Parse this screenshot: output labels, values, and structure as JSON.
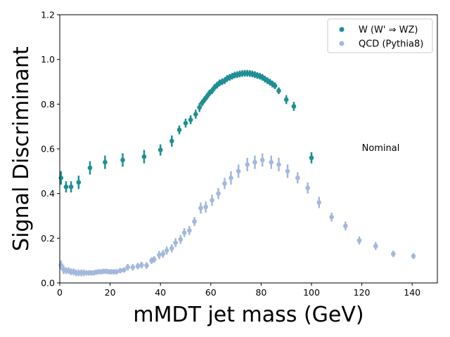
{
  "chart_data": {
    "type": "scatter",
    "title": "",
    "xlabel": "mMDT jet mass (GeV)",
    "ylabel": "Signal Discriminant",
    "xlim": [
      0,
      150
    ],
    "ylim": [
      0,
      1.2
    ],
    "xticks": [
      "0",
      "20",
      "40",
      "60",
      "80",
      "100",
      "120",
      "140"
    ],
    "yticks": [
      "0.0",
      "0.2",
      "0.4",
      "0.6",
      "0.8",
      "1.0",
      "1.2"
    ],
    "legend_position": "top-right",
    "annotation": {
      "text": "Nominal",
      "x": 120,
      "y": 0.59
    },
    "series": [
      {
        "name": "W (W' ⇒ WZ)",
        "color": "#1f8f94",
        "points": [
          {
            "x": 0.5,
            "y": 0.47,
            "err": 0.03
          },
          {
            "x": 2.5,
            "y": 0.43,
            "err": 0.025
          },
          {
            "x": 4.5,
            "y": 0.43,
            "err": 0.025
          },
          {
            "x": 7.5,
            "y": 0.45,
            "err": 0.03
          },
          {
            "x": 12,
            "y": 0.515,
            "err": 0.03
          },
          {
            "x": 18,
            "y": 0.54,
            "err": 0.03
          },
          {
            "x": 25,
            "y": 0.55,
            "err": 0.03
          },
          {
            "x": 33.5,
            "y": 0.565,
            "err": 0.03
          },
          {
            "x": 40,
            "y": 0.595,
            "err": 0.025
          },
          {
            "x": 44.5,
            "y": 0.635,
            "err": 0.025
          },
          {
            "x": 47.5,
            "y": 0.685,
            "err": 0.02
          },
          {
            "x": 50,
            "y": 0.715,
            "err": 0.02
          },
          {
            "x": 52,
            "y": 0.73,
            "err": 0.02
          },
          {
            "x": 54,
            "y": 0.755,
            "err": 0.02
          },
          {
            "x": 55.5,
            "y": 0.785,
            "err": 0.02
          },
          {
            "x": 56.5,
            "y": 0.805,
            "err": 0.015
          },
          {
            "x": 57.5,
            "y": 0.82,
            "err": 0.015
          },
          {
            "x": 58.5,
            "y": 0.835,
            "err": 0.015
          },
          {
            "x": 59.5,
            "y": 0.85,
            "err": 0.015
          },
          {
            "x": 60.5,
            "y": 0.86,
            "err": 0.015
          },
          {
            "x": 61.5,
            "y": 0.875,
            "err": 0.015
          },
          {
            "x": 62.5,
            "y": 0.885,
            "err": 0.015
          },
          {
            "x": 63.5,
            "y": 0.895,
            "err": 0.015
          },
          {
            "x": 64.5,
            "y": 0.9,
            "err": 0.015
          },
          {
            "x": 65.5,
            "y": 0.905,
            "err": 0.015
          },
          {
            "x": 66.5,
            "y": 0.915,
            "err": 0.015
          },
          {
            "x": 67.5,
            "y": 0.92,
            "err": 0.015
          },
          {
            "x": 68.5,
            "y": 0.925,
            "err": 0.015
          },
          {
            "x": 69.5,
            "y": 0.93,
            "err": 0.015
          },
          {
            "x": 70.5,
            "y": 0.932,
            "err": 0.015
          },
          {
            "x": 71.5,
            "y": 0.935,
            "err": 0.015
          },
          {
            "x": 72.5,
            "y": 0.937,
            "err": 0.015
          },
          {
            "x": 73.5,
            "y": 0.938,
            "err": 0.015
          },
          {
            "x": 74.5,
            "y": 0.938,
            "err": 0.015
          },
          {
            "x": 75.5,
            "y": 0.937,
            "err": 0.015
          },
          {
            "x": 76.5,
            "y": 0.935,
            "err": 0.015
          },
          {
            "x": 77.5,
            "y": 0.932,
            "err": 0.015
          },
          {
            "x": 78.5,
            "y": 0.928,
            "err": 0.015
          },
          {
            "x": 79.5,
            "y": 0.925,
            "err": 0.015
          },
          {
            "x": 80.5,
            "y": 0.92,
            "err": 0.015
          },
          {
            "x": 81.5,
            "y": 0.912,
            "err": 0.015
          },
          {
            "x": 82.5,
            "y": 0.905,
            "err": 0.015
          },
          {
            "x": 83.5,
            "y": 0.898,
            "err": 0.015
          },
          {
            "x": 84.5,
            "y": 0.89,
            "err": 0.015
          },
          {
            "x": 85.5,
            "y": 0.882,
            "err": 0.015
          },
          {
            "x": 87,
            "y": 0.86,
            "err": 0.015
          },
          {
            "x": 90,
            "y": 0.82,
            "err": 0.02
          },
          {
            "x": 93,
            "y": 0.79,
            "err": 0.02
          },
          {
            "x": 100,
            "y": 0.56,
            "err": 0.025
          }
        ]
      },
      {
        "name": "QCD (Pythia8)",
        "color": "#a4b8dd",
        "points": [
          {
            "x": 0.5,
            "y": 0.08,
            "err": 0.02
          },
          {
            "x": 1.5,
            "y": 0.06,
            "err": 0.02
          },
          {
            "x": 2.5,
            "y": 0.055,
            "err": 0.015
          },
          {
            "x": 3.5,
            "y": 0.055,
            "err": 0.015
          },
          {
            "x": 4.5,
            "y": 0.05,
            "err": 0.015
          },
          {
            "x": 5.5,
            "y": 0.05,
            "err": 0.015
          },
          {
            "x": 6.5,
            "y": 0.045,
            "err": 0.015
          },
          {
            "x": 7.5,
            "y": 0.045,
            "err": 0.015
          },
          {
            "x": 8.5,
            "y": 0.045,
            "err": 0.015
          },
          {
            "x": 9.5,
            "y": 0.045,
            "err": 0.015
          },
          {
            "x": 10.5,
            "y": 0.045,
            "err": 0.012
          },
          {
            "x": 11.5,
            "y": 0.045,
            "err": 0.012
          },
          {
            "x": 12.5,
            "y": 0.045,
            "err": 0.012
          },
          {
            "x": 13.5,
            "y": 0.045,
            "err": 0.012
          },
          {
            "x": 14.5,
            "y": 0.048,
            "err": 0.012
          },
          {
            "x": 15.5,
            "y": 0.05,
            "err": 0.012
          },
          {
            "x": 16.5,
            "y": 0.05,
            "err": 0.012
          },
          {
            "x": 17.5,
            "y": 0.052,
            "err": 0.012
          },
          {
            "x": 18.5,
            "y": 0.052,
            "err": 0.012
          },
          {
            "x": 19.5,
            "y": 0.05,
            "err": 0.012
          },
          {
            "x": 20.5,
            "y": 0.05,
            "err": 0.012
          },
          {
            "x": 21.5,
            "y": 0.05,
            "err": 0.012
          },
          {
            "x": 22.5,
            "y": 0.05,
            "err": 0.012
          },
          {
            "x": 24,
            "y": 0.055,
            "err": 0.012
          },
          {
            "x": 25.5,
            "y": 0.058,
            "err": 0.012
          },
          {
            "x": 27,
            "y": 0.07,
            "err": 0.015
          },
          {
            "x": 29,
            "y": 0.07,
            "err": 0.015
          },
          {
            "x": 31,
            "y": 0.075,
            "err": 0.015
          },
          {
            "x": 32.5,
            "y": 0.08,
            "err": 0.015
          },
          {
            "x": 34.5,
            "y": 0.078,
            "err": 0.015
          },
          {
            "x": 36.5,
            "y": 0.1,
            "err": 0.015
          },
          {
            "x": 37.5,
            "y": 0.105,
            "err": 0.015
          },
          {
            "x": 39.5,
            "y": 0.125,
            "err": 0.018
          },
          {
            "x": 41,
            "y": 0.13,
            "err": 0.018
          },
          {
            "x": 42.5,
            "y": 0.145,
            "err": 0.018
          },
          {
            "x": 44.5,
            "y": 0.155,
            "err": 0.018
          },
          {
            "x": 46,
            "y": 0.18,
            "err": 0.02
          },
          {
            "x": 48,
            "y": 0.195,
            "err": 0.02
          },
          {
            "x": 49.5,
            "y": 0.225,
            "err": 0.02
          },
          {
            "x": 51.5,
            "y": 0.235,
            "err": 0.02
          },
          {
            "x": 53.5,
            "y": 0.275,
            "err": 0.02
          },
          {
            "x": 56,
            "y": 0.335,
            "err": 0.025
          },
          {
            "x": 58,
            "y": 0.34,
            "err": 0.025
          },
          {
            "x": 60.5,
            "y": 0.37,
            "err": 0.025
          },
          {
            "x": 63,
            "y": 0.4,
            "err": 0.025
          },
          {
            "x": 65.5,
            "y": 0.445,
            "err": 0.025
          },
          {
            "x": 68,
            "y": 0.47,
            "err": 0.03
          },
          {
            "x": 71,
            "y": 0.5,
            "err": 0.03
          },
          {
            "x": 74.5,
            "y": 0.53,
            "err": 0.03
          },
          {
            "x": 77.5,
            "y": 0.54,
            "err": 0.03
          },
          {
            "x": 80.5,
            "y": 0.55,
            "err": 0.03
          },
          {
            "x": 84,
            "y": 0.54,
            "err": 0.03
          },
          {
            "x": 87,
            "y": 0.53,
            "err": 0.03
          },
          {
            "x": 90.5,
            "y": 0.5,
            "err": 0.03
          },
          {
            "x": 94.5,
            "y": 0.47,
            "err": 0.025
          },
          {
            "x": 98.5,
            "y": 0.425,
            "err": 0.025
          },
          {
            "x": 103,
            "y": 0.36,
            "err": 0.025
          },
          {
            "x": 108,
            "y": 0.295,
            "err": 0.02
          },
          {
            "x": 113.5,
            "y": 0.255,
            "err": 0.02
          },
          {
            "x": 119,
            "y": 0.19,
            "err": 0.018
          },
          {
            "x": 125.5,
            "y": 0.165,
            "err": 0.018
          },
          {
            "x": 132.5,
            "y": 0.13,
            "err": 0.015
          },
          {
            "x": 140.5,
            "y": 0.12,
            "err": 0.013
          }
        ]
      }
    ]
  }
}
